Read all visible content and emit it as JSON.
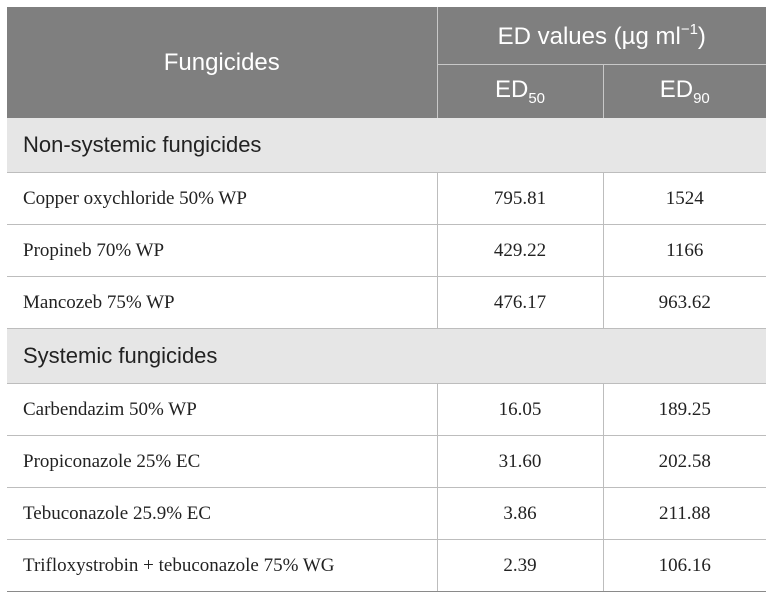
{
  "table": {
    "header": {
      "col1": "Fungicides",
      "group": "ED values (µg ml",
      "group_sup": "−1",
      "group_close": ")",
      "ed50_main": "ED",
      "ed50_sub": "50",
      "ed90_main": "ED",
      "ed90_sub": "90"
    },
    "sections": [
      {
        "title": "Non-systemic fungicides",
        "rows": [
          {
            "name": "Copper oxychloride 50% WP",
            "ed50": "795.81",
            "ed90": "1524"
          },
          {
            "name": "Propineb 70% WP",
            "ed50": "429.22",
            "ed90": "1166"
          },
          {
            "name": "Mancozeb 75% WP",
            "ed50": "476.17",
            "ed90": "963.62"
          }
        ]
      },
      {
        "title": "Systemic fungicides",
        "rows": [
          {
            "name": "Carbendazim 50% WP",
            "ed50": "16.05",
            "ed90": "189.25"
          },
          {
            "name": "Propiconazole 25% EC",
            "ed50": "31.60",
            "ed90": "202.58"
          },
          {
            "name": "Tebuconazole 25.9% EC",
            "ed50": "3.86",
            "ed90": "211.88"
          },
          {
            "name": "Trifloxystrobin + tebuconazole 75% WG",
            "ed50": "2.39",
            "ed90": "106.16"
          }
        ]
      }
    ]
  }
}
